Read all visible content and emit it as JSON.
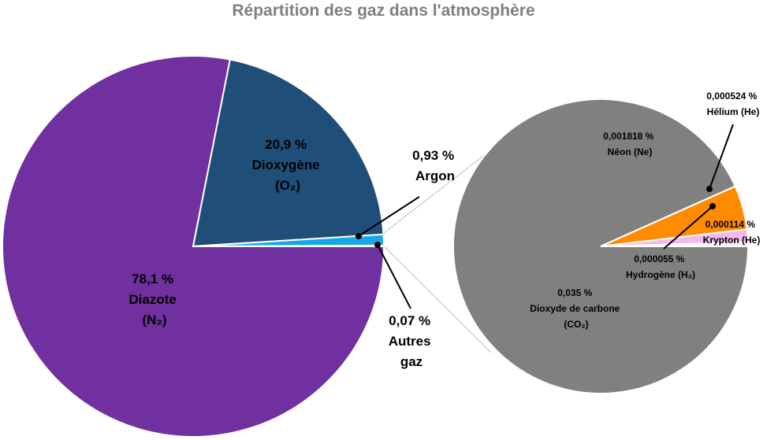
{
  "colors": {
    "diazote": "#7030a0",
    "dioxygene": "#1f4e79",
    "argon": "#17a6e6",
    "autres": "#f2c000",
    "co2": "#808080",
    "neon": "#ff8c00",
    "helium": "#f4b8ee",
    "hydrogene": "#8b2c4e",
    "krypton": "#e8e4ee",
    "connector": "#bfbfbf",
    "leader": "#000000",
    "title": "#7f7f7f"
  },
  "chart_data": [
    {
      "type": "pie",
      "title": "Répartition des gaz dans l'atmosphère",
      "slices": [
        {
          "name": "Diazote",
          "value": 78.1,
          "label": [
            "78,1 %",
            "Diazote",
            "(N₂)"
          ]
        },
        {
          "name": "Dioxygène",
          "value": 20.9,
          "label": [
            "20,9 %",
            "Dioxygène",
            "(O₂)"
          ]
        },
        {
          "name": "Argon",
          "value": 0.93,
          "label": [
            "0,93 %",
            "Argon"
          ]
        },
        {
          "name": "Autres gaz",
          "value": 0.07,
          "label": [
            "0,07 %",
            "Autres",
            "gaz"
          ]
        }
      ]
    },
    {
      "type": "pie",
      "slices": [
        {
          "name": "Dioxyde de carbone",
          "value": 0.035,
          "label": [
            "0,035 %",
            "Dioxyde de carbone",
            "(CO₂)"
          ]
        },
        {
          "name": "Néon",
          "value": 0.001818,
          "label": [
            "0,001818 %",
            "Néon (Ne)"
          ]
        },
        {
          "name": "Hélium",
          "value": 0.000524,
          "label": [
            "0,000524 %",
            "Hélium (He)"
          ]
        },
        {
          "name": "Hydrogène",
          "value": 5.5e-05,
          "label": [
            "0,000055 %",
            "Hydrogène (H₂)"
          ]
        },
        {
          "name": "Krypton",
          "value": 0.000114,
          "label": [
            "0,000114 %",
            "Krypton (He)"
          ]
        }
      ]
    }
  ]
}
